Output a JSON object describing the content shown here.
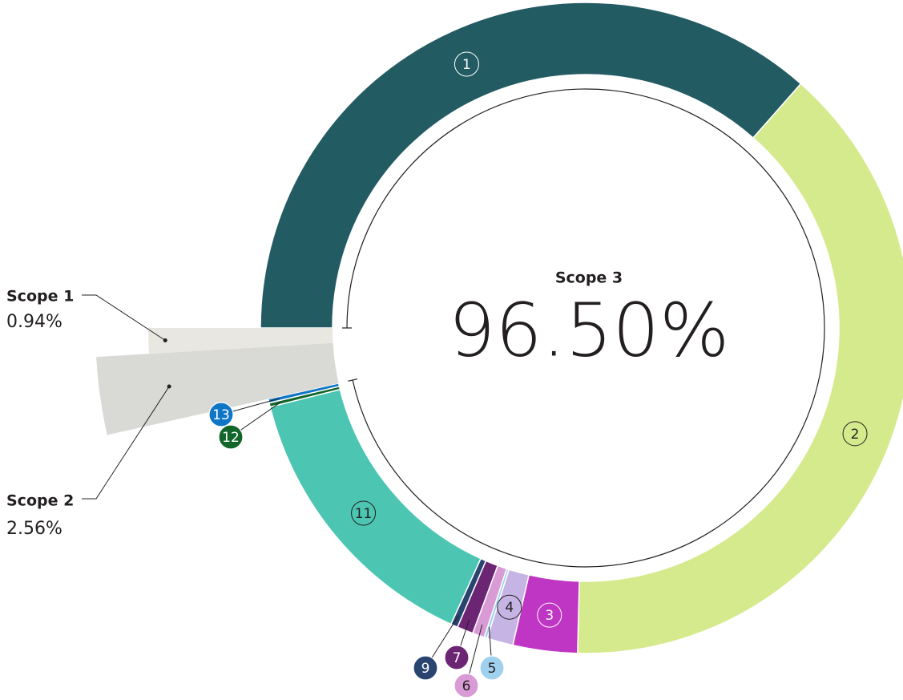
{
  "chart_data": {
    "type": "donut",
    "segments": {
      "categories": [
        "1",
        "2",
        "3",
        "4",
        "5",
        "6",
        "7",
        "9",
        "11",
        "12",
        "13"
      ],
      "values": [
        36.5,
        38.9,
        3.2,
        1.3,
        0.15,
        0.6,
        0.8,
        0.35,
        14.3,
        0.2,
        0.2
      ],
      "colors": [
        "#235b63",
        "#d5ea8c",
        "#c036c4",
        "#c6b4e4",
        "#9fd1ef",
        "#d99bd6",
        "#6b2573",
        "#2a4470",
        "#4cc6b2",
        "#13662a",
        "#0f76c6"
      ]
    },
    "scopes": {
      "categories": [
        "Scope 1",
        "Scope 2",
        "Scope 3"
      ],
      "values": [
        0.94,
        2.56,
        96.5
      ],
      "value_labels": [
        "0.94%",
        "2.56%",
        "96.50%"
      ],
      "colors": [
        "#e9e7e1",
        "#d9d9d6",
        "#231f20"
      ]
    }
  }
}
